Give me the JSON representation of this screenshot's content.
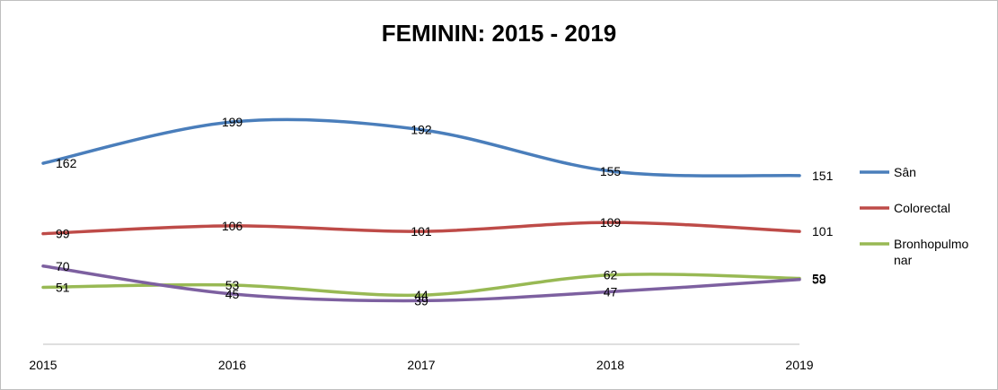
{
  "chart_data": {
    "type": "line",
    "title": "FEMININ: 2015 - 2019",
    "categories": [
      "2015",
      "2016",
      "2017",
      "2018",
      "2019"
    ],
    "series": [
      {
        "name": "Sân",
        "values": [
          162,
          199,
          192,
          155,
          151
        ],
        "color": "#4a7ebb"
      },
      {
        "name": "Colorectal",
        "values": [
          99,
          106,
          101,
          109,
          101
        ],
        "color": "#be4b48"
      },
      {
        "name": "Bronhopulmonar",
        "values": [
          51,
          53,
          44,
          62,
          59
        ],
        "color": "#98b954",
        "legend_lines": [
          "Bronhopulmo",
          "nar"
        ]
      },
      {
        "name": "",
        "values": [
          70,
          45,
          39,
          47,
          58
        ],
        "color": "#7d60a0"
      }
    ],
    "xlabel": "",
    "ylabel": "",
    "ylim": [
      0,
      230
    ],
    "grid": false,
    "legend": "right",
    "smooth": true
  }
}
